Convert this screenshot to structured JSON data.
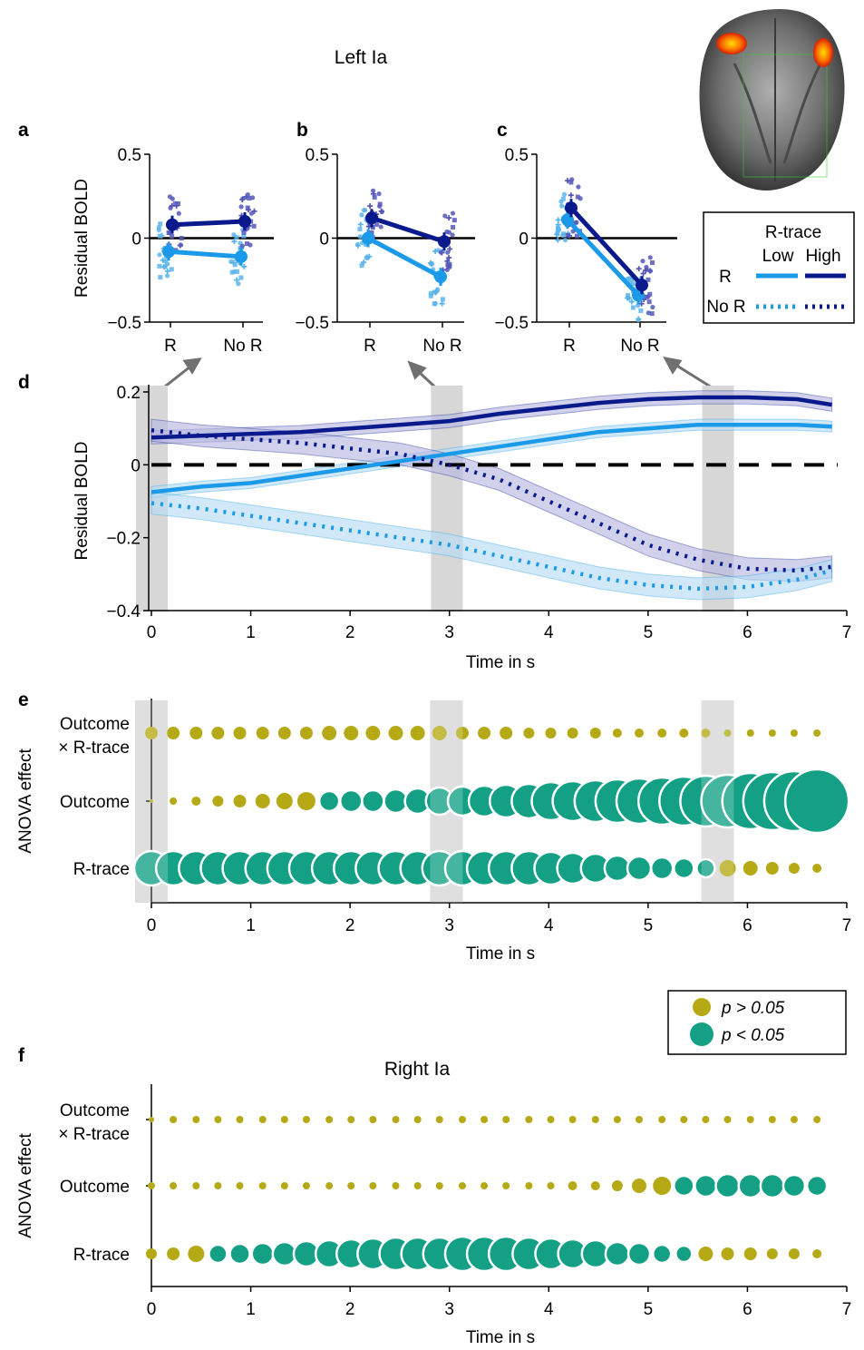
{
  "figure": {
    "left_title": "Left Ia",
    "right_title": "Right Ia",
    "panel_letters": [
      "a",
      "b",
      "c",
      "d",
      "e",
      "f"
    ]
  },
  "colors": {
    "low": "#1a9ae8",
    "high": "#0a1a8c",
    "low_points": "#5ab4ec",
    "high_points": "#5558b8",
    "low_band": "#b9dcf5",
    "high_band": "#b8b8e2",
    "sig": "#13a085",
    "nonsig": "#b5a915",
    "highlight": "#d7d7d7"
  },
  "legend_rtrace": {
    "title": "R-trace",
    "col_low": "Low",
    "col_high": "High",
    "row_r": "R",
    "row_nor": "No R"
  },
  "legend_p": {
    "nonsig": "p > 0.05",
    "sig": "p < 0.05"
  },
  "chart_data": [
    {
      "panel": "a",
      "type": "line",
      "ylabel": "Residual BOLD",
      "ylim": [
        -0.5,
        0.5
      ],
      "yticks": [
        "0.5",
        "0",
        "−0.5"
      ],
      "categories": [
        "R",
        "No R"
      ],
      "series": [
        {
          "name": "Low",
          "values": [
            -0.08,
            -0.11
          ]
        },
        {
          "name": "High",
          "values": [
            0.08,
            0.1
          ]
        }
      ]
    },
    {
      "panel": "b",
      "type": "line",
      "ylim": [
        -0.5,
        0.5
      ],
      "yticks": [
        "0.5",
        "0",
        "−0.5"
      ],
      "categories": [
        "R",
        "No R"
      ],
      "series": [
        {
          "name": "Low",
          "values": [
            0.0,
            -0.23
          ]
        },
        {
          "name": "High",
          "values": [
            0.12,
            -0.02
          ]
        }
      ]
    },
    {
      "panel": "c",
      "type": "line",
      "ylim": [
        -0.5,
        0.5
      ],
      "yticks": [
        "0.5",
        "0",
        "−0.5"
      ],
      "categories": [
        "R",
        "No R"
      ],
      "series": [
        {
          "name": "Low",
          "values": [
            0.11,
            -0.34
          ]
        },
        {
          "name": "High",
          "values": [
            0.18,
            -0.28
          ]
        }
      ]
    },
    {
      "panel": "d",
      "type": "line",
      "xlabel": "Time in s",
      "ylabel": "Residual BOLD",
      "xlim": [
        0,
        7
      ],
      "ylim": [
        -0.4,
        0.2
      ],
      "xticks": [
        "0",
        "1",
        "2",
        "3",
        "4",
        "5",
        "6",
        "7"
      ],
      "yticks": [
        "0.2",
        "0",
        "−0.2",
        "−0.4"
      ],
      "highlight_times": [
        0,
        2.97,
        5.7
      ],
      "x": [
        0,
        0.5,
        1,
        1.5,
        2,
        2.5,
        3,
        3.5,
        4,
        4.5,
        5,
        5.5,
        6,
        6.5,
        6.85
      ],
      "series": [
        {
          "name": "R / High",
          "values": [
            0.075,
            0.08,
            0.085,
            0.09,
            0.1,
            0.11,
            0.12,
            0.14,
            0.155,
            0.17,
            0.18,
            0.185,
            0.185,
            0.18,
            0.165
          ]
        },
        {
          "name": "R / Low",
          "values": [
            -0.075,
            -0.06,
            -0.05,
            -0.03,
            -0.01,
            0.01,
            0.03,
            0.05,
            0.07,
            0.09,
            0.1,
            0.11,
            0.11,
            0.11,
            0.105
          ]
        },
        {
          "name": "No R / High",
          "values": [
            0.095,
            0.08,
            0.07,
            0.06,
            0.045,
            0.03,
            0.0,
            -0.04,
            -0.1,
            -0.16,
            -0.22,
            -0.26,
            -0.285,
            -0.29,
            -0.28
          ]
        },
        {
          "name": "No R / Low",
          "values": [
            -0.105,
            -0.12,
            -0.14,
            -0.16,
            -0.18,
            -0.2,
            -0.22,
            -0.25,
            -0.28,
            -0.31,
            -0.33,
            -0.34,
            -0.335,
            -0.315,
            -0.29
          ]
        }
      ]
    },
    {
      "panel": "e",
      "type": "scatter",
      "xlabel": "Time in s",
      "ylabel": "ANOVA effect",
      "xlim": [
        0,
        7
      ],
      "xticks": [
        "0",
        "1",
        "2",
        "3",
        "4",
        "5",
        "6",
        "7"
      ],
      "effects": [
        "Outcome\n× R-trace",
        "Outcome",
        "R-trace"
      ],
      "effect_line1": [
        "Outcome",
        "Outcome",
        "R-trace"
      ],
      "effect_line2": [
        "× R-trace",
        "",
        ""
      ],
      "times": [
        0,
        0.22,
        0.45,
        0.67,
        0.89,
        1.12,
        1.34,
        1.56,
        1.79,
        2.01,
        2.23,
        2.46,
        2.68,
        2.9,
        3.13,
        3.35,
        3.57,
        3.8,
        4.02,
        4.24,
        4.47,
        4.69,
        4.91,
        5.14,
        5.36,
        5.58,
        5.8,
        6.03,
        6.25,
        6.47,
        6.7
      ],
      "sizes": [
        [
          7,
          7,
          7,
          7,
          7,
          7,
          7,
          7,
          8,
          8,
          8,
          8,
          8,
          8,
          7,
          7,
          7,
          6,
          6,
          6,
          6,
          5,
          5,
          5,
          5,
          5,
          4,
          4,
          4,
          4,
          4
        ],
        [
          2,
          4,
          5,
          6,
          7,
          8,
          9,
          10,
          11,
          12,
          12,
          13,
          14,
          15,
          16,
          17,
          18,
          19,
          21,
          22,
          23,
          24,
          25,
          26,
          27,
          28,
          29,
          31,
          32,
          33,
          35
        ],
        [
          19,
          19,
          19,
          19,
          19,
          19,
          19,
          19,
          19,
          19,
          19,
          19,
          19,
          19,
          19,
          19,
          19,
          19,
          18,
          17,
          16,
          14,
          13,
          12,
          11,
          10,
          9,
          8,
          7,
          6,
          5
        ]
      ],
      "significant": [
        [
          0,
          0,
          0,
          0,
          0,
          0,
          0,
          0,
          0,
          0,
          0,
          0,
          0,
          0,
          0,
          0,
          0,
          0,
          0,
          0,
          0,
          0,
          0,
          0,
          0,
          0,
          0,
          0,
          0,
          0,
          0
        ],
        [
          0,
          0,
          0,
          0,
          0,
          0,
          0,
          0,
          1,
          1,
          1,
          1,
          1,
          1,
          1,
          1,
          1,
          1,
          1,
          1,
          1,
          1,
          1,
          1,
          1,
          1,
          1,
          1,
          1,
          1,
          1
        ],
        [
          1,
          1,
          1,
          1,
          1,
          1,
          1,
          1,
          1,
          1,
          1,
          1,
          1,
          1,
          1,
          1,
          1,
          1,
          1,
          1,
          1,
          1,
          1,
          1,
          1,
          1,
          0,
          0,
          0,
          0,
          0
        ]
      ]
    },
    {
      "panel": "f",
      "type": "scatter",
      "xlabel": "Time in s",
      "ylabel": "ANOVA effect",
      "xlim": [
        0,
        7
      ],
      "xticks": [
        "0",
        "1",
        "2",
        "3",
        "4",
        "5",
        "6",
        "7"
      ],
      "effect_line1": [
        "Outcome",
        "Outcome",
        "R-trace"
      ],
      "effect_line2": [
        "× R-trace",
        "",
        ""
      ],
      "times": [
        0,
        0.22,
        0.45,
        0.67,
        0.89,
        1.12,
        1.34,
        1.56,
        1.79,
        2.01,
        2.23,
        2.46,
        2.68,
        2.9,
        3.13,
        3.35,
        3.57,
        3.8,
        4.02,
        4.24,
        4.47,
        4.69,
        4.91,
        5.14,
        5.36,
        5.58,
        5.8,
        6.03,
        6.25,
        6.47,
        6.7
      ],
      "sizes": [
        [
          3,
          4,
          4,
          4,
          4,
          4,
          4,
          4,
          4,
          4,
          4,
          4,
          4,
          4,
          4,
          4,
          4,
          4,
          4,
          4,
          4,
          4,
          4,
          4,
          4,
          4,
          4,
          4,
          4,
          4,
          4
        ],
        [
          4,
          4,
          4,
          4,
          4,
          4,
          4,
          4,
          4,
          4,
          4,
          4,
          4,
          4,
          4,
          4,
          4,
          4,
          4,
          5,
          5,
          6,
          8,
          10,
          11,
          12,
          13,
          13,
          13,
          12,
          11
        ],
        [
          6,
          7,
          9,
          10,
          11,
          12,
          13,
          14,
          15,
          16,
          17,
          18,
          18,
          18,
          19,
          19,
          19,
          18,
          17,
          16,
          15,
          13,
          12,
          10,
          9,
          8,
          7,
          7,
          6,
          6,
          5
        ]
      ],
      "significant": [
        [
          0,
          0,
          0,
          0,
          0,
          0,
          0,
          0,
          0,
          0,
          0,
          0,
          0,
          0,
          0,
          0,
          0,
          0,
          0,
          0,
          0,
          0,
          0,
          0,
          0,
          0,
          0,
          0,
          0,
          0,
          0
        ],
        [
          0,
          0,
          0,
          0,
          0,
          0,
          0,
          0,
          0,
          0,
          0,
          0,
          0,
          0,
          0,
          0,
          0,
          0,
          0,
          0,
          0,
          0,
          0,
          0,
          1,
          1,
          1,
          1,
          1,
          1,
          1
        ],
        [
          0,
          0,
          0,
          1,
          1,
          1,
          1,
          1,
          1,
          1,
          1,
          1,
          1,
          1,
          1,
          1,
          1,
          1,
          1,
          1,
          1,
          1,
          1,
          1,
          1,
          0,
          0,
          0,
          0,
          0,
          0
        ]
      ]
    }
  ]
}
